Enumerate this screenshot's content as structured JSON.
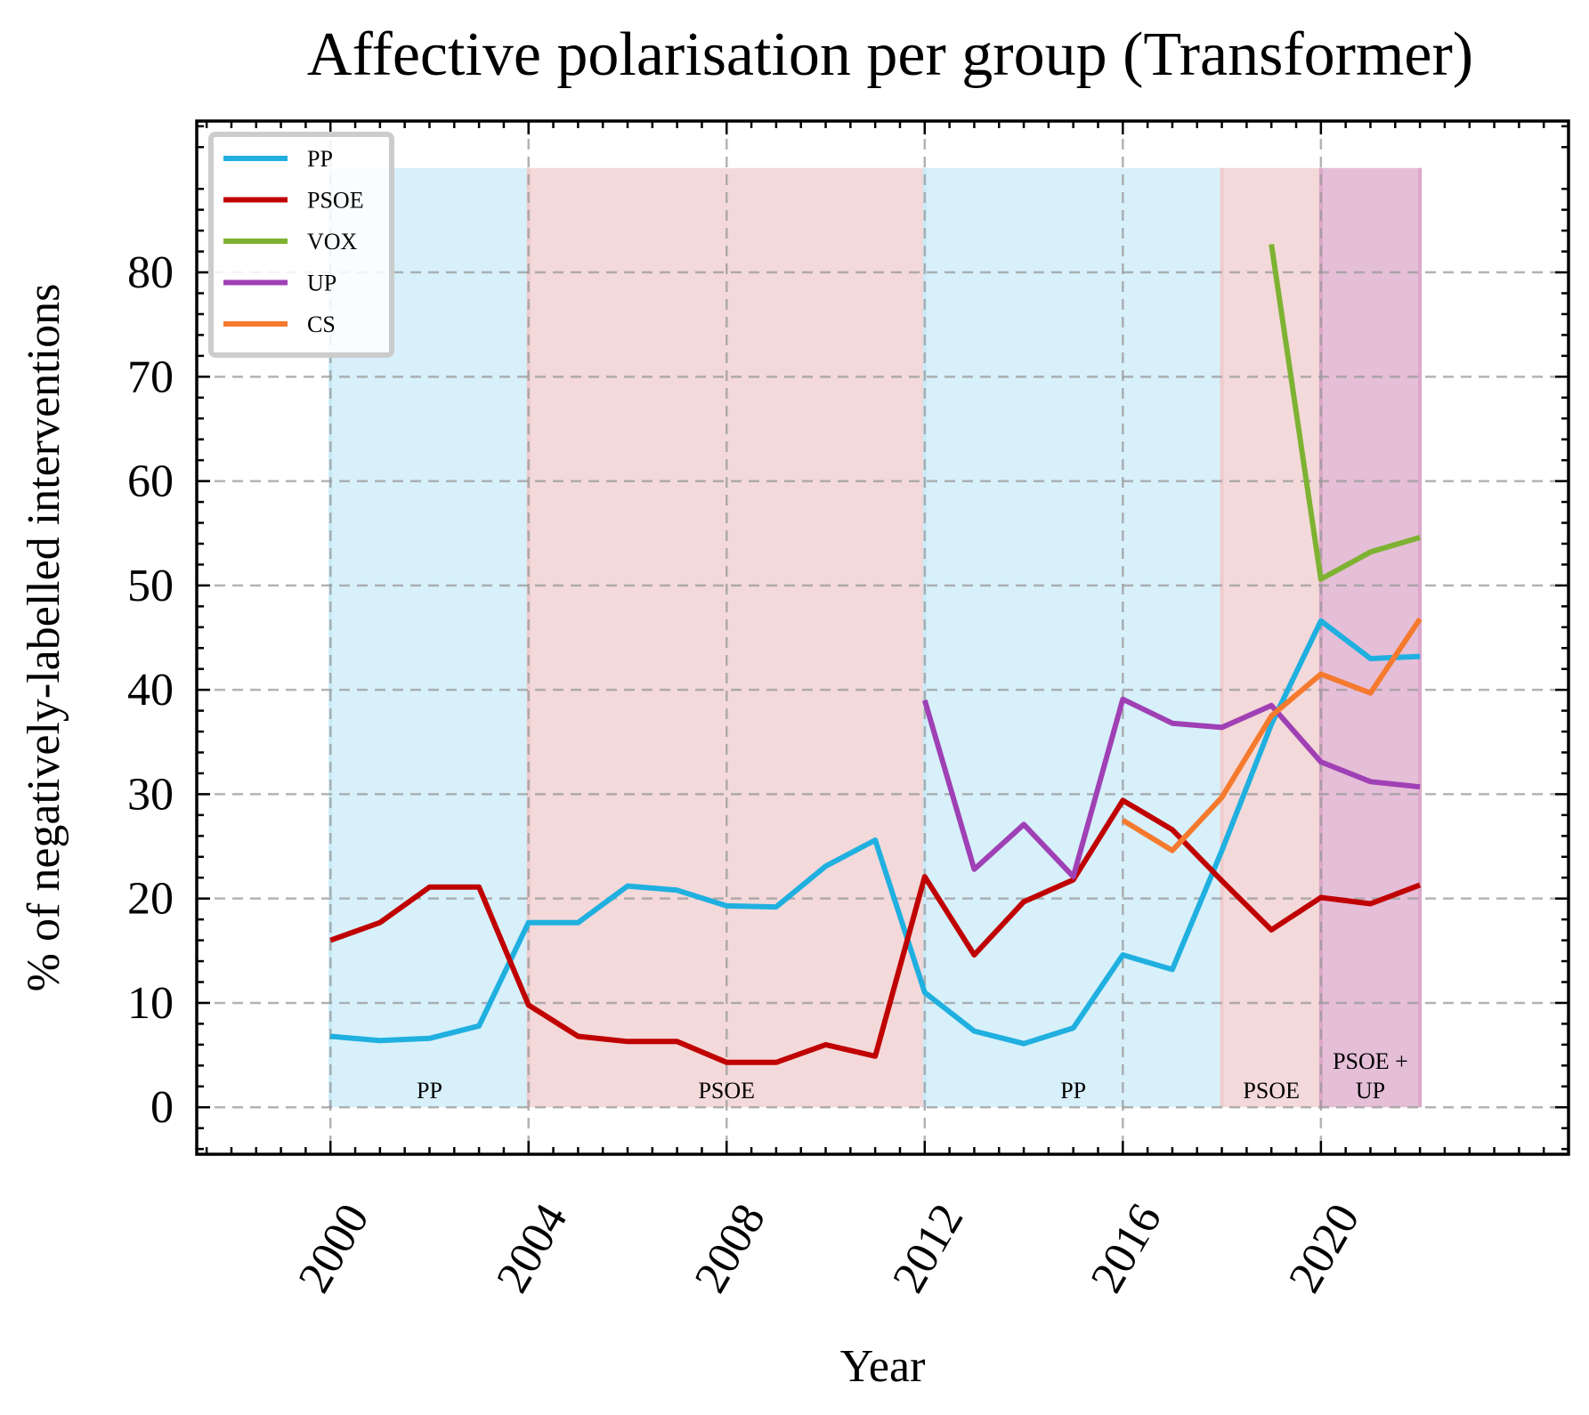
{
  "chart_data": {
    "type": "line",
    "title": "Affective polarisation per group (Transformer)",
    "xlabel": "Year",
    "ylabel": "% of negatively-labelled interventions",
    "xlim": [
      1997.3,
      2025.0
    ],
    "ylim": [
      -4.5,
      94.5
    ],
    "x_ticks": [
      2000,
      2004,
      2008,
      2012,
      2016,
      2020
    ],
    "y_ticks": [
      0,
      10,
      20,
      30,
      40,
      50,
      60,
      70,
      80
    ],
    "grid": true,
    "legend_position": "top-left",
    "bands": [
      {
        "label": "PP",
        "label_lines": [
          "PP"
        ],
        "start": 2000,
        "end": 2004,
        "color": "#c9ebf8"
      },
      {
        "label": "PSOE",
        "label_lines": [
          "PSOE"
        ],
        "start": 2004,
        "end": 2012,
        "color": "#efcccc"
      },
      {
        "label": "PP",
        "label_lines": [
          "PP"
        ],
        "start": 2012,
        "end": 2018,
        "color": "#c9ebf8"
      },
      {
        "label": "PSOE",
        "label_lines": [
          "PSOE"
        ],
        "start": 2018,
        "end": 2020,
        "color": "#efcccc"
      },
      {
        "label": "PSOE + UP",
        "label_lines": [
          "PSOE +",
          "UP"
        ],
        "start": 2020,
        "end": 2022,
        "color": "#dca8c9"
      }
    ],
    "band_top": 90,
    "series": [
      {
        "name": "PP",
        "color": "#1fb0e0",
        "x": [
          2000,
          2001,
          2002,
          2003,
          2004,
          2005,
          2006,
          2007,
          2008,
          2009,
          2010,
          2011,
          2012,
          2013,
          2014,
          2015,
          2016,
          2017,
          2018,
          2019,
          2020,
          2021,
          2022
        ],
        "y": [
          6.8,
          6.4,
          6.6,
          7.8,
          17.7,
          17.7,
          21.2,
          20.8,
          19.3,
          19.2,
          23.1,
          25.6,
          11.0,
          7.3,
          6.1,
          7.6,
          14.6,
          13.2,
          24.6,
          36.7,
          46.6,
          43.0,
          43.2
        ]
      },
      {
        "name": "PSOE",
        "color": "#c00000",
        "x": [
          2000,
          2001,
          2002,
          2003,
          2004,
          2005,
          2006,
          2007,
          2008,
          2009,
          2010,
          2011,
          2012,
          2013,
          2014,
          2015,
          2016,
          2017,
          2018,
          2019,
          2020,
          2021,
          2022
        ],
        "y": [
          16.0,
          17.7,
          21.1,
          21.1,
          9.8,
          6.8,
          6.3,
          6.3,
          4.3,
          4.3,
          6.0,
          4.9,
          22.1,
          14.6,
          19.7,
          21.8,
          29.4,
          26.6,
          21.7,
          17.0,
          20.1,
          19.5,
          21.3
        ]
      },
      {
        "name": "VOX",
        "color": "#7eb232",
        "x": [
          2019,
          2020,
          2021,
          2022
        ],
        "y": [
          82.7,
          50.6,
          53.2,
          54.6
        ]
      },
      {
        "name": "UP",
        "color": "#a040b5",
        "x": [
          2012,
          2013,
          2014,
          2015,
          2016,
          2017,
          2018,
          2019,
          2020,
          2021,
          2022
        ],
        "y": [
          39.0,
          22.8,
          27.1,
          22.1,
          39.1,
          36.8,
          36.4,
          38.5,
          33.1,
          31.2,
          30.7
        ]
      },
      {
        "name": "CS",
        "color": "#f57a2e",
        "x": [
          2016,
          2017,
          2018,
          2019,
          2020,
          2021,
          2022
        ],
        "y": [
          27.5,
          24.6,
          29.7,
          37.5,
          41.5,
          39.7,
          46.8
        ]
      }
    ]
  }
}
